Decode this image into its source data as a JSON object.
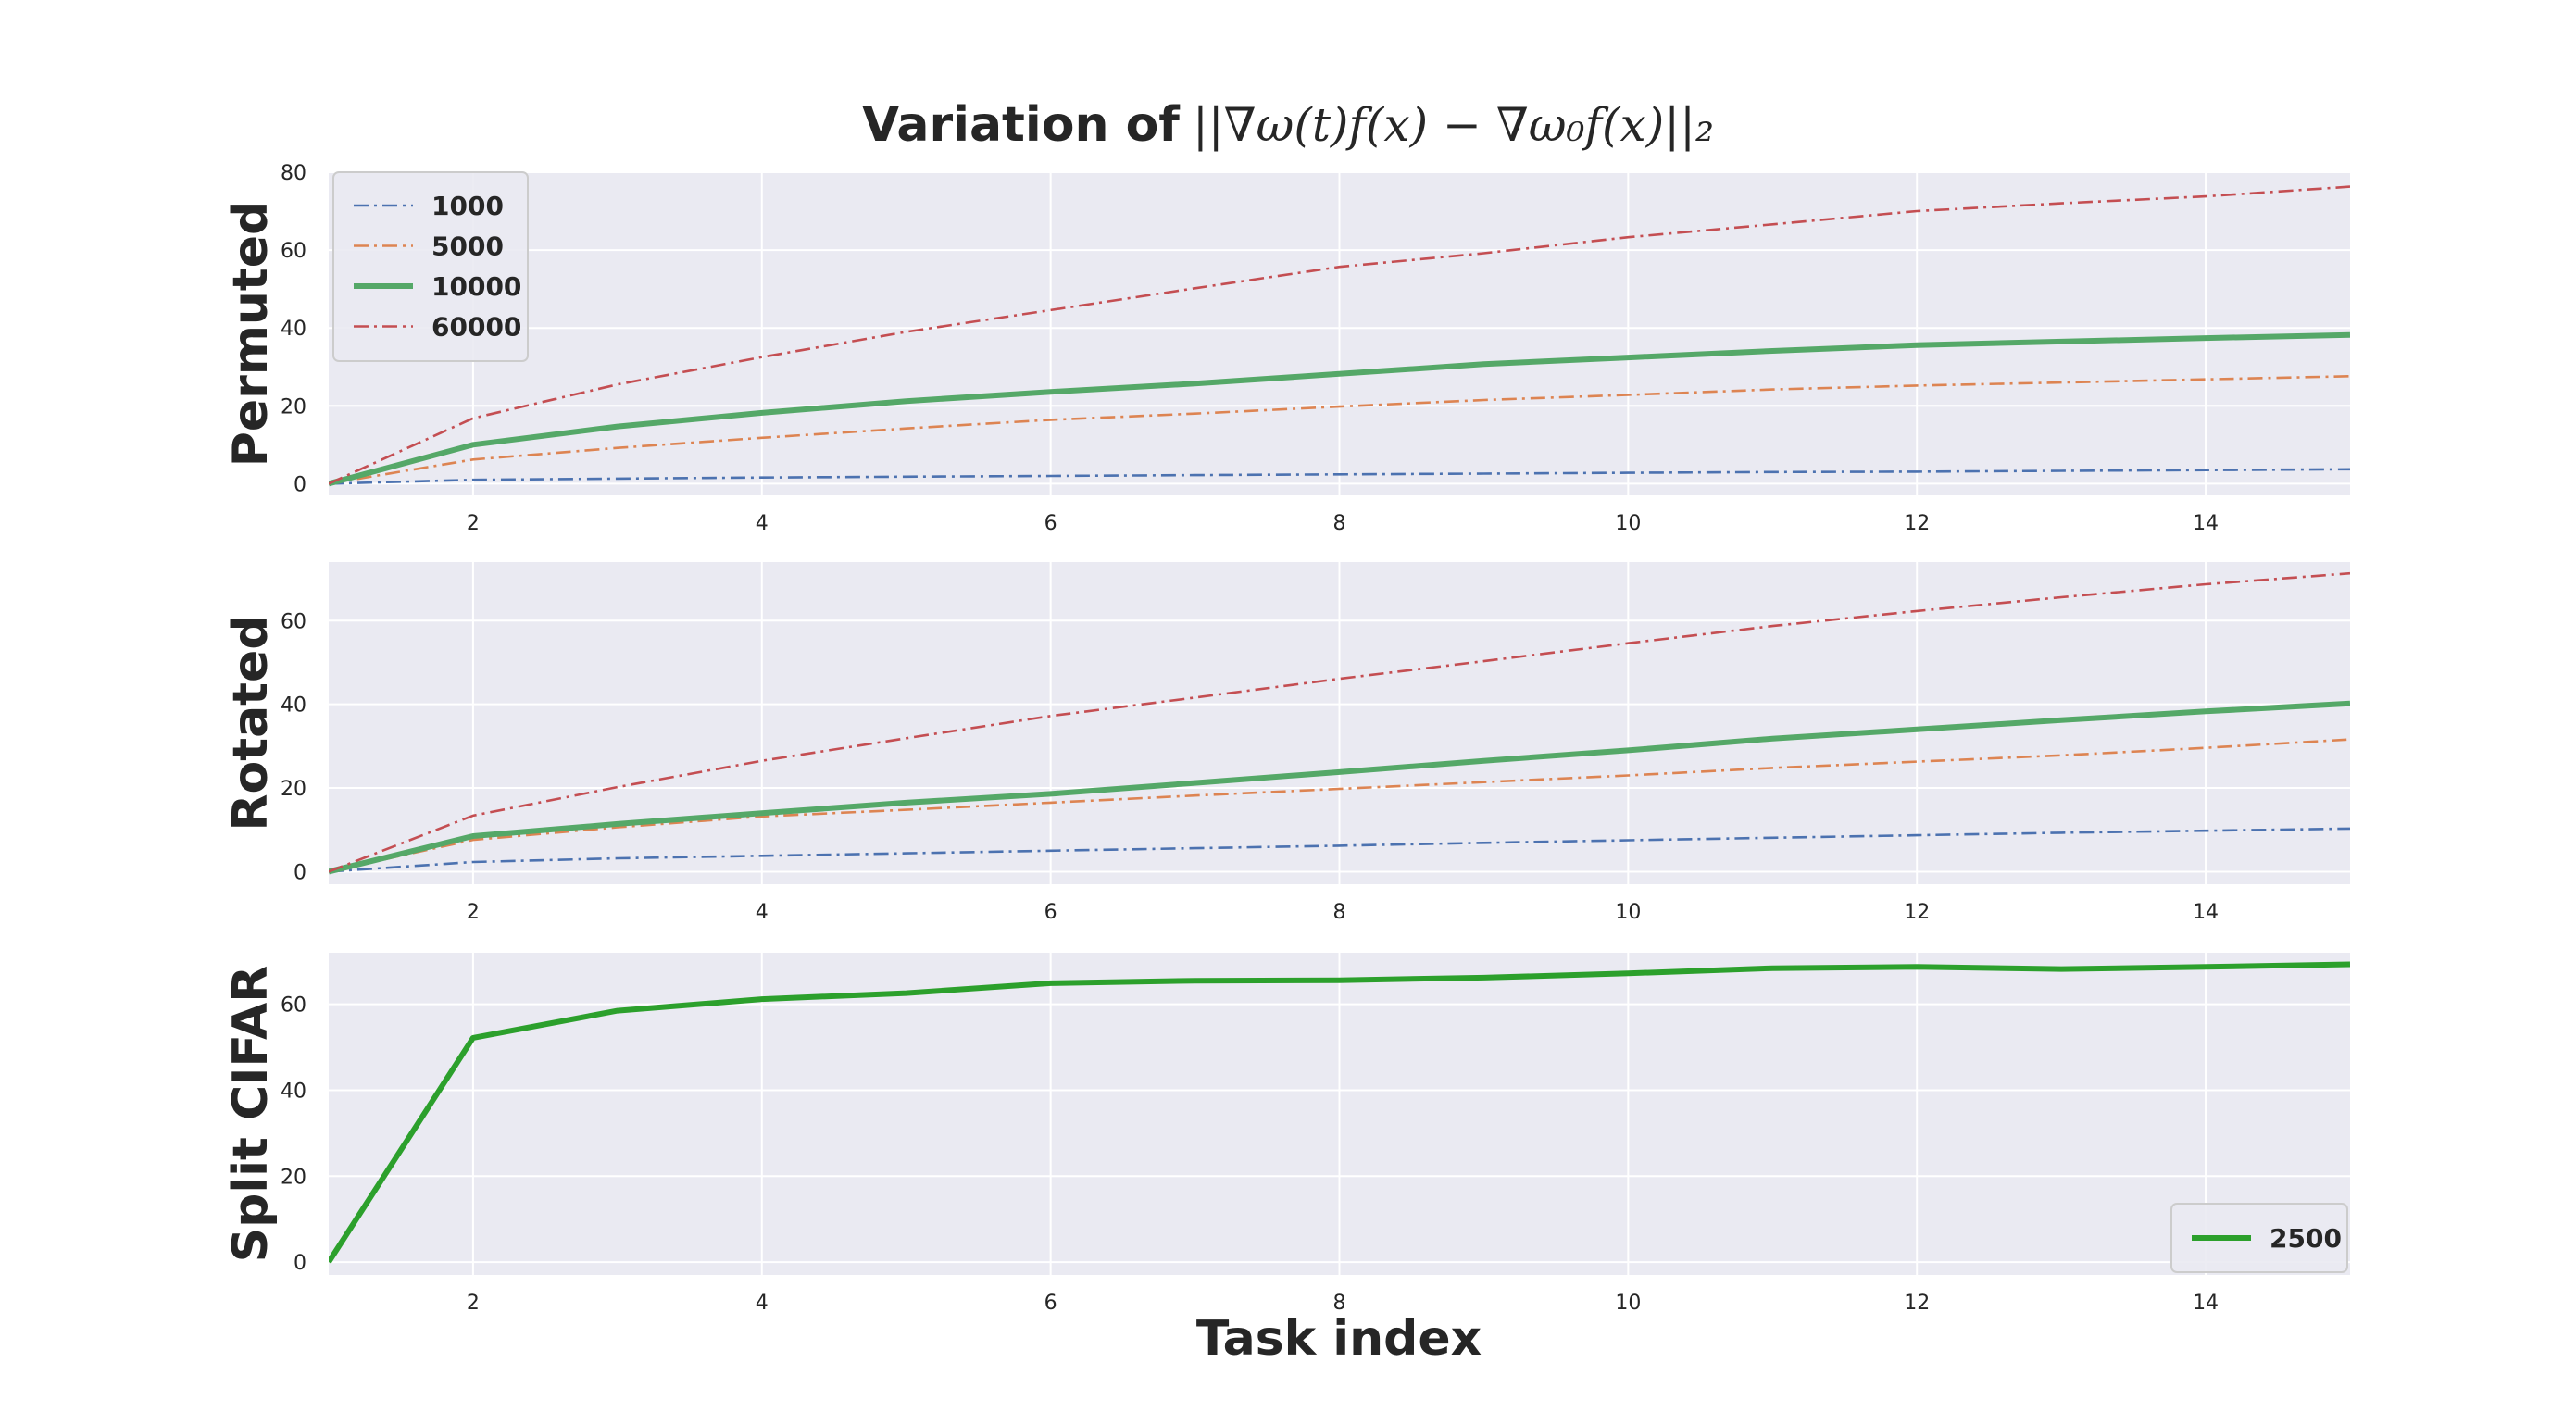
{
  "title": {
    "bold_part": "Variation of",
    "math_part": "||∇ω(t)f(x) − ∇ω₀f(x)||₂"
  },
  "xlabel": "Task index",
  "colors": {
    "background": "#eaeaf2",
    "grid": "#ffffff",
    "blue": "#4c72b0",
    "orange": "#dd8452",
    "green": "#55a868",
    "red": "#c44e52",
    "bright_green": "#2ca02c"
  },
  "chart_data": [
    {
      "type": "line",
      "ylabel": "Permuted",
      "xlim": [
        1,
        15
      ],
      "ylim": [
        -3,
        80
      ],
      "xticks": [
        2,
        4,
        6,
        8,
        10,
        12,
        14
      ],
      "yticks": [
        0,
        20,
        40,
        60,
        80
      ],
      "grid": true,
      "legend": "top-left",
      "x": [
        1,
        2,
        3,
        4,
        5,
        6,
        7,
        8,
        9,
        10,
        11,
        12,
        13,
        14,
        15
      ],
      "series": [
        {
          "name": "1000",
          "style": "dashdot",
          "color": "#4c72b0",
          "values": [
            0,
            1.0,
            1.3,
            1.6,
            1.8,
            2.0,
            2.2,
            2.4,
            2.6,
            2.8,
            3.0,
            3.1,
            3.3,
            3.5,
            3.7
          ]
        },
        {
          "name": "5000",
          "style": "dashdot",
          "color": "#dd8452",
          "values": [
            0,
            6.2,
            9.2,
            11.8,
            14.2,
            16.4,
            18.0,
            19.8,
            21.5,
            22.8,
            24.2,
            25.2,
            26.0,
            26.8,
            27.6
          ]
        },
        {
          "name": "10000",
          "style": "solid",
          "color": "#55a868",
          "values": [
            0,
            10.0,
            14.7,
            18.2,
            21.2,
            23.6,
            25.7,
            28.2,
            30.7,
            32.4,
            34.1,
            35.6,
            36.5,
            37.4,
            38.2
          ]
        },
        {
          "name": "60000",
          "style": "dashdot",
          "color": "#c44e52",
          "values": [
            0,
            16.8,
            25.5,
            32.5,
            39.0,
            44.6,
            50.2,
            55.7,
            59.2,
            63.3,
            66.6,
            70.0,
            72.0,
            73.8,
            76.3
          ]
        }
      ]
    },
    {
      "type": "line",
      "ylabel": "Rotated",
      "xlim": [
        1,
        15
      ],
      "ylim": [
        -3,
        74
      ],
      "xticks": [
        2,
        4,
        6,
        8,
        10,
        12,
        14
      ],
      "yticks": [
        0,
        20,
        40,
        60
      ],
      "grid": true,
      "x": [
        1,
        2,
        3,
        4,
        5,
        6,
        7,
        8,
        9,
        10,
        11,
        12,
        13,
        14,
        15
      ],
      "series": [
        {
          "style": "dashdot",
          "color": "#4c72b0",
          "values": [
            0,
            2.3,
            3.2,
            3.8,
            4.4,
            5.0,
            5.6,
            6.2,
            6.9,
            7.5,
            8.1,
            8.7,
            9.3,
            9.8,
            10.3
          ]
        },
        {
          "style": "dashdot",
          "color": "#dd8452",
          "values": [
            0,
            7.6,
            10.6,
            13.2,
            14.8,
            16.5,
            18.2,
            19.8,
            21.4,
            23.0,
            24.8,
            26.3,
            27.8,
            29.6,
            31.6
          ]
        },
        {
          "style": "solid",
          "color": "#55a868",
          "values": [
            0,
            8.5,
            11.4,
            14.0,
            16.5,
            18.6,
            21.2,
            23.8,
            26.5,
            29.0,
            31.8,
            34.0,
            36.2,
            38.3,
            40.2
          ]
        },
        {
          "style": "dashdot",
          "color": "#c44e52",
          "values": [
            0,
            13.4,
            20.2,
            26.5,
            31.9,
            37.2,
            41.6,
            46.1,
            50.3,
            54.6,
            58.7,
            62.3,
            65.6,
            68.7,
            71.3
          ]
        }
      ]
    },
    {
      "type": "line",
      "ylabel": "Split CIFAR",
      "xlim": [
        1,
        15
      ],
      "ylim": [
        -3,
        72
      ],
      "xticks": [
        2,
        4,
        6,
        8,
        10,
        12,
        14
      ],
      "yticks": [
        0,
        20,
        40,
        60
      ],
      "grid": true,
      "legend": "bottom-right",
      "x": [
        1,
        2,
        3,
        4,
        5,
        6,
        7,
        8,
        9,
        10,
        11,
        12,
        13,
        14,
        15
      ],
      "series": [
        {
          "name": "2500",
          "style": "solid",
          "color": "#2ca02c",
          "values": [
            0,
            52.2,
            58.5,
            61.2,
            62.6,
            64.9,
            65.5,
            65.6,
            66.2,
            67.2,
            68.4,
            68.7,
            68.2,
            68.7,
            69.3
          ]
        }
      ]
    }
  ]
}
